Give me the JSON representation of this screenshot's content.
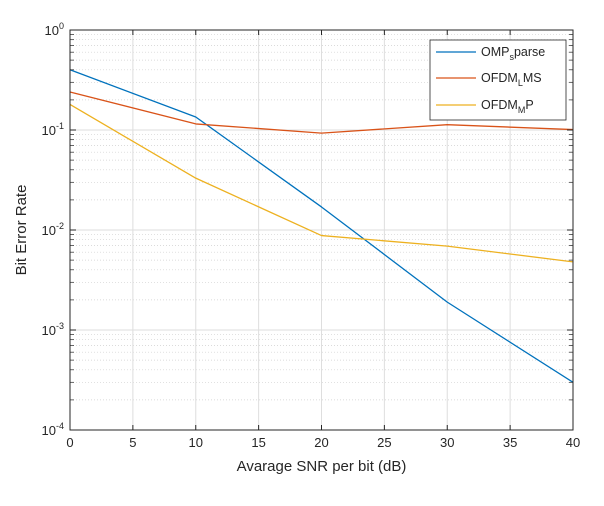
{
  "chart_data": {
    "type": "line",
    "xlabel": "Avarage SNR per bit (dB)",
    "ylabel": "Bit Error Rate",
    "x_ticks": [
      "0",
      "5",
      "10",
      "15",
      "20",
      "25",
      "30",
      "35",
      "40"
    ],
    "y_ticks": [
      {
        "base": "10",
        "exp": "-4"
      },
      {
        "base": "10",
        "exp": "-3"
      },
      {
        "base": "10",
        "exp": "-2"
      },
      {
        "base": "10",
        "exp": "-1"
      },
      {
        "base": "10",
        "exp": "0"
      }
    ],
    "xlim": [
      0,
      40
    ],
    "ylim": [
      0.0001,
      1
    ],
    "yscale": "log",
    "grid": "major and minor",
    "legend_position": "top-right",
    "series": [
      {
        "name": "OMPsparse",
        "legend_main": "OMP",
        "legend_sub": "s",
        "legend_rest": "parse",
        "color": "#0072BD",
        "x": [
          0,
          10,
          20,
          30,
          40
        ],
        "y": [
          0.4,
          0.135,
          0.017,
          0.0019,
          0.0003
        ]
      },
      {
        "name": "OFDMLMS",
        "legend_main": "OFDM",
        "legend_sub": "L",
        "legend_rest": "MS",
        "color": "#D95319",
        "x": [
          0,
          10,
          20,
          30,
          40
        ],
        "y": [
          0.24,
          0.115,
          0.093,
          0.113,
          0.101
        ]
      },
      {
        "name": "OFDMMP",
        "legend_main": "OFDM",
        "legend_sub": "M",
        "legend_rest": "P",
        "color": "#EDB120",
        "x": [
          0,
          10,
          20,
          30,
          40
        ],
        "y": [
          0.18,
          0.033,
          0.0088,
          0.0069,
          0.0048
        ]
      }
    ]
  }
}
